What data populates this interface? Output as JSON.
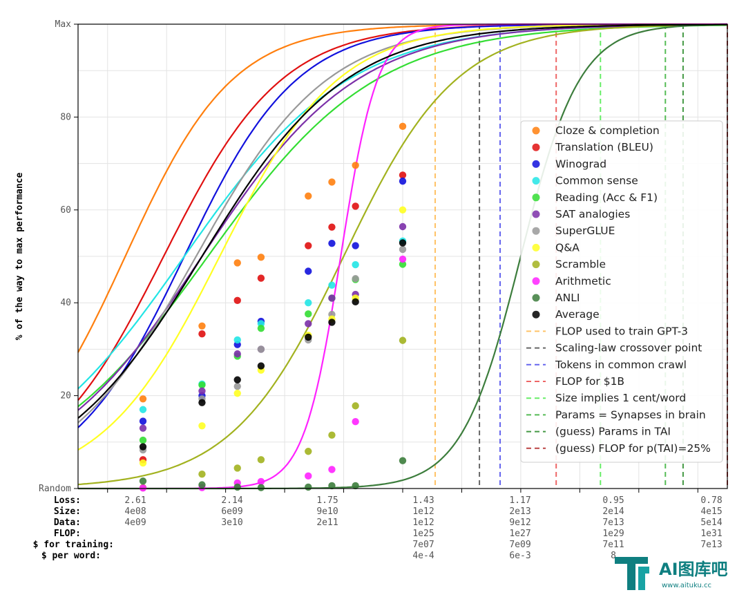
{
  "chart_data": {
    "type": "scatter",
    "ylabel": "% of the way to max performance",
    "ylim": [
      0,
      100
    ],
    "y_tick_labels": [
      {
        "v": 0,
        "label": "Random"
      },
      {
        "v": 20,
        "label": "20"
      },
      {
        "v": 40,
        "label": "40"
      },
      {
        "v": 60,
        "label": "60"
      },
      {
        "v": 80,
        "label": "80"
      },
      {
        "v": 100,
        "label": "Max"
      }
    ],
    "x_scale": "log10 (effective compute)",
    "xlim": [
      21.5,
      32.5
    ],
    "bottom_table": {
      "row_labels": [
        "Loss:",
        "Size:",
        "Data:",
        "FLOP:",
        "$ for training:",
        "$ per word:"
      ],
      "columns": [
        {
          "x": 22.5,
          "values": [
            "2.61",
            "4e08",
            "4e09",
            "",
            "",
            ""
          ]
        },
        {
          "x": 24.5,
          "values": [
            "2.14",
            "6e09",
            "3e10",
            "",
            "",
            ""
          ]
        },
        {
          "x": 26.5,
          "values": [
            "1.75",
            "9e10",
            "2e11",
            "",
            "",
            ""
          ]
        },
        {
          "x": 28.5,
          "values": [
            "1.43",
            "1e12",
            "1e12",
            "1e25",
            "7e07",
            "4e-4"
          ]
        },
        {
          "x": 30.5,
          "values": [
            "1.17",
            "2e13",
            "9e12",
            "1e27",
            "7e09",
            "6e-3"
          ]
        },
        {
          "x": 32.5,
          "values": [
            "0.95",
            "2e14",
            "7e13",
            "1e29",
            "7e11",
            "8"
          ]
        },
        {
          "x": 34.5,
          "values": [
            "0.78",
            "4e15",
            "5e14",
            "1e31",
            "7e13",
            ""
          ]
        }
      ]
    },
    "series": [
      {
        "name": "Cloze & completion",
        "color": "#ff7f0e",
        "center": 22.3,
        "slope": 1.1,
        "points": [
          [
            22.6,
            19.3
          ],
          [
            23.6,
            35
          ],
          [
            24.2,
            48.6
          ],
          [
            24.6,
            49.8
          ],
          [
            25.4,
            63
          ],
          [
            25.8,
            66
          ],
          [
            26.2,
            69.6
          ],
          [
            27.0,
            78
          ]
        ]
      },
      {
        "name": "Translation (BLEU)",
        "color": "#e01010",
        "center": 22.95,
        "slope": 1.0,
        "points": [
          [
            22.6,
            6.2
          ],
          [
            23.6,
            33.3
          ],
          [
            24.2,
            40.5
          ],
          [
            24.6,
            45.3
          ],
          [
            25.4,
            52.3
          ],
          [
            25.8,
            56.3
          ],
          [
            26.2,
            60.8
          ],
          [
            27.0,
            67.5
          ]
        ]
      },
      {
        "name": "Winograd",
        "color": "#1111dd",
        "center": 23.3,
        "slope": 1.05,
        "points": [
          [
            22.6,
            14.5
          ],
          [
            23.6,
            20
          ],
          [
            24.2,
            31
          ],
          [
            24.6,
            36
          ],
          [
            25.4,
            46.8
          ],
          [
            25.8,
            52.8
          ],
          [
            26.2,
            52.3
          ],
          [
            27.0,
            66.2
          ]
        ]
      },
      {
        "name": "Common sense",
        "color": "#22e5e5",
        "center": 23.3,
        "slope": 0.72,
        "points": [
          [
            22.6,
            17
          ],
          [
            23.6,
            22.5
          ],
          [
            24.2,
            32
          ],
          [
            24.6,
            35.5
          ],
          [
            25.4,
            40
          ],
          [
            25.8,
            43.8
          ],
          [
            26.2,
            48.2
          ],
          [
            27.0,
            53.3
          ]
        ]
      },
      {
        "name": "Reading (Acc & F1)",
        "color": "#33dd33",
        "center": 23.7,
        "slope": 0.7,
        "points": [
          [
            22.6,
            10.4
          ],
          [
            23.6,
            22.3
          ],
          [
            24.2,
            28.5
          ],
          [
            24.6,
            34.5
          ],
          [
            25.4,
            37.6
          ],
          [
            25.8,
            41
          ],
          [
            26.2,
            45
          ],
          [
            27.0,
            48.3
          ]
        ]
      },
      {
        "name": "SAT analogies",
        "color": "#7b2fa8",
        "center": 23.6,
        "slope": 0.76,
        "points": [
          [
            22.6,
            13
          ],
          [
            23.6,
            21
          ],
          [
            24.2,
            29
          ],
          [
            24.6,
            30
          ],
          [
            25.4,
            35.5
          ],
          [
            25.8,
            41
          ],
          [
            26.2,
            41.8
          ],
          [
            27.0,
            56.4
          ]
        ]
      },
      {
        "name": "SuperGLUE",
        "color": "#999999",
        "center": 23.5,
        "slope": 0.9,
        "points": [
          [
            22.6,
            8.3
          ],
          [
            23.6,
            19.3
          ],
          [
            24.2,
            22
          ],
          [
            24.6,
            30
          ],
          [
            25.4,
            32
          ],
          [
            25.8,
            37.5
          ],
          [
            26.2,
            45.2
          ],
          [
            27.0,
            51.5
          ]
        ]
      },
      {
        "name": "Q&A",
        "color": "#ffff22",
        "center": 23.9,
        "slope": 1.0,
        "points": [
          [
            22.6,
            5.5
          ],
          [
            23.6,
            13.5
          ],
          [
            24.2,
            20.5
          ],
          [
            24.6,
            25.5
          ],
          [
            25.4,
            33
          ],
          [
            25.8,
            36.5
          ],
          [
            26.2,
            41
          ],
          [
            27.0,
            60
          ]
        ]
      },
      {
        "name": "Scramble",
        "color": "#a2b21f",
        "center": 26.0,
        "slope": 1.05,
        "points": [
          [
            22.6,
            0.2
          ],
          [
            23.6,
            3.1
          ],
          [
            24.2,
            4.4
          ],
          [
            24.6,
            6.2
          ],
          [
            25.4,
            8
          ],
          [
            25.8,
            11.5
          ],
          [
            26.2,
            17.8
          ],
          [
            27.0,
            31.9
          ]
        ]
      },
      {
        "name": "Arithmetic",
        "color": "#ff22ff",
        "center": 25.95,
        "slope": 3.2,
        "points": [
          [
            22.6,
            0.1
          ],
          [
            23.6,
            0.2
          ],
          [
            24.2,
            1.2
          ],
          [
            24.6,
            1.5
          ],
          [
            25.4,
            2.7
          ],
          [
            25.8,
            4.1
          ],
          [
            26.2,
            14.4
          ],
          [
            27.0,
            49.4
          ]
        ]
      },
      {
        "name": "ANLI",
        "color": "#3c7d3c",
        "center": 29.0,
        "slope": 2.0,
        "points": [
          [
            22.6,
            1.6
          ],
          [
            23.6,
            0.8
          ],
          [
            24.2,
            0.3
          ],
          [
            24.6,
            0.2
          ],
          [
            25.4,
            0.3
          ],
          [
            25.8,
            0.6
          ],
          [
            26.2,
            0.6
          ],
          [
            27.0,
            6
          ]
        ]
      },
      {
        "name": "Average",
        "color": "#000000",
        "center": 23.6,
        "slope": 0.82,
        "points": [
          [
            22.6,
            9
          ],
          [
            23.6,
            18.5
          ],
          [
            24.2,
            23.4
          ],
          [
            24.6,
            26.4
          ],
          [
            25.4,
            32.6
          ],
          [
            25.8,
            35.8
          ],
          [
            26.2,
            40.2
          ],
          [
            27.0,
            52.9
          ]
        ]
      }
    ],
    "vertical_lines": [
      {
        "name": "FLOP used to train GPT-3",
        "x": 27.55,
        "color": "#ffc266"
      },
      {
        "name": "Scaling-law crossover point",
        "x": 28.3,
        "color": "#666666"
      },
      {
        "name": "Tokens in common crawl",
        "x": 28.65,
        "color": "#6666ee"
      },
      {
        "name": "FLOP for $1B",
        "x": 29.6,
        "color": "#ee6666"
      },
      {
        "name": "Size implies 1 cent/word",
        "x": 30.35,
        "color": "#66ee66"
      },
      {
        "name": "Params = Synapses in brain",
        "x": 31.45,
        "color": "#55bb55"
      },
      {
        "name": "(guess) Params in TAI",
        "x": 31.75,
        "color": "#449944"
      },
      {
        "name": "(guess) FLOP for p(TAI)=25%",
        "x": 32.5,
        "color": "#bb4444"
      }
    ],
    "grid": true,
    "legend_position": "right"
  },
  "watermark": {
    "text_main": "AI图库吧",
    "text_sub": "www.aituku.cc"
  }
}
